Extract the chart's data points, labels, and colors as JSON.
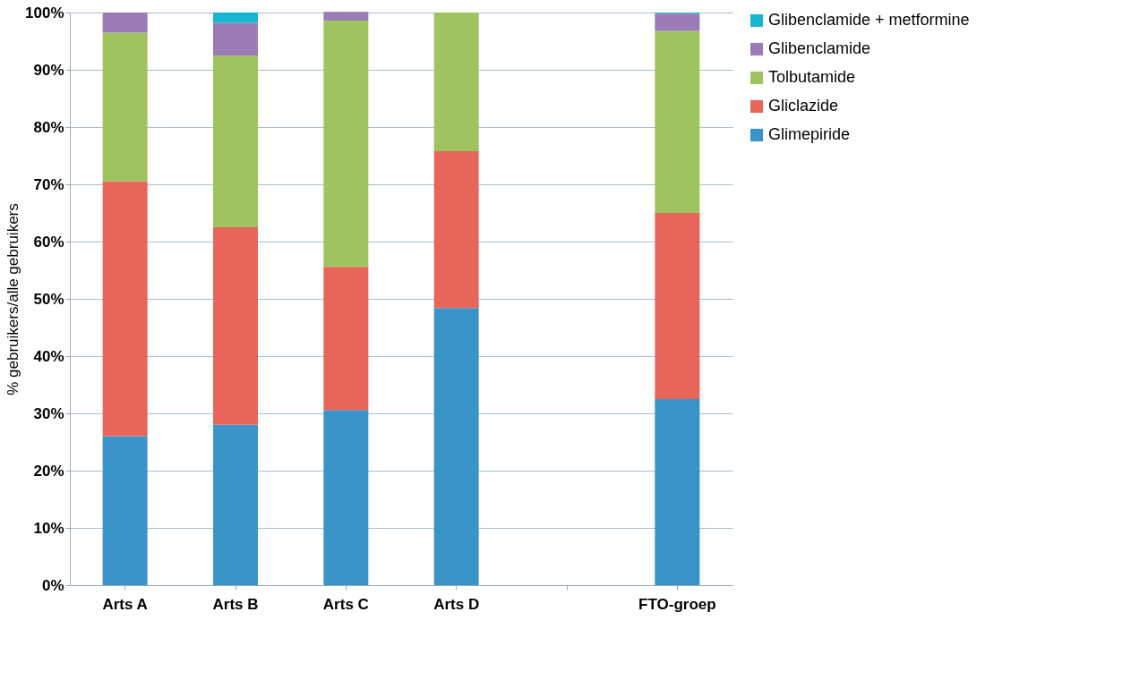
{
  "chart_data": {
    "type": "bar",
    "stacked": true,
    "ylabel": "% gebruikers/alle gebruikers",
    "categories": [
      "Arts A",
      "Arts B",
      "Arts C",
      "Arts D",
      null,
      "FTO-groep"
    ],
    "series": [
      {
        "name": "Glimepiride",
        "color": "#3a93c9",
        "values": [
          26,
          28,
          30.6,
          48.4,
          null,
          32.5
        ]
      },
      {
        "name": "Gliclazide",
        "color": "#e8655a",
        "values": [
          44.5,
          34.5,
          25,
          27.4,
          null,
          32.5
        ]
      },
      {
        "name": "Tolbutamide",
        "color": "#9ec35f",
        "values": [
          26,
          30,
          43,
          24.2,
          null,
          31.8
        ]
      },
      {
        "name": "Glibenclamide",
        "color": "#9b7bb5",
        "values": [
          3.5,
          5.7,
          1.5,
          0,
          null,
          3
        ]
      },
      {
        "name": "Glibenclamide + metformine",
        "color": "#17b5cf",
        "values": [
          0,
          1.8,
          0,
          0,
          null,
          0.2
        ]
      }
    ],
    "ylim": [
      0,
      100
    ],
    "yticks": [
      {
        "value": 0,
        "label": "0%"
      },
      {
        "value": 10,
        "label": "10%"
      },
      {
        "value": 20,
        "label": "20%"
      },
      {
        "value": 30,
        "label": "30%"
      },
      {
        "value": 40,
        "label": "40%"
      },
      {
        "value": 50,
        "label": "50%"
      },
      {
        "value": 60,
        "label": "60%"
      },
      {
        "value": 70,
        "label": "70%"
      },
      {
        "value": 80,
        "label": "80%"
      },
      {
        "value": 90,
        "label": "90%"
      },
      {
        "value": 100,
        "label": "100%"
      }
    ],
    "grid": "y",
    "legend": "right"
  }
}
